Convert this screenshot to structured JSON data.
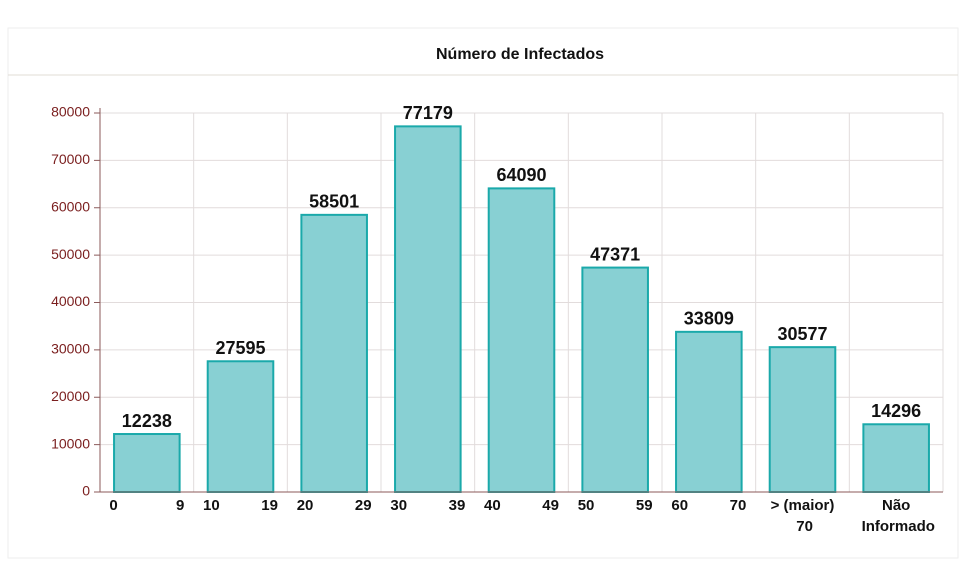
{
  "chart_data": {
    "type": "bar",
    "title": "Número de Infectados",
    "categories": [
      "0 9",
      "10 19",
      "20 29",
      "30 39",
      "40 49",
      "50 59",
      "60 70",
      "> (maior) 70",
      "Não Informado"
    ],
    "values": [
      12238,
      27595,
      58501,
      77179,
      64090,
      47371,
      33809,
      30577,
      14296
    ],
    "color": "#88d0d3",
    "edge_color": "#1aa9aa",
    "ylim": [
      0,
      80000
    ],
    "yticks": [
      0,
      10000,
      20000,
      30000,
      40000,
      50000,
      60000,
      70000,
      80000
    ],
    "grid": true
  }
}
